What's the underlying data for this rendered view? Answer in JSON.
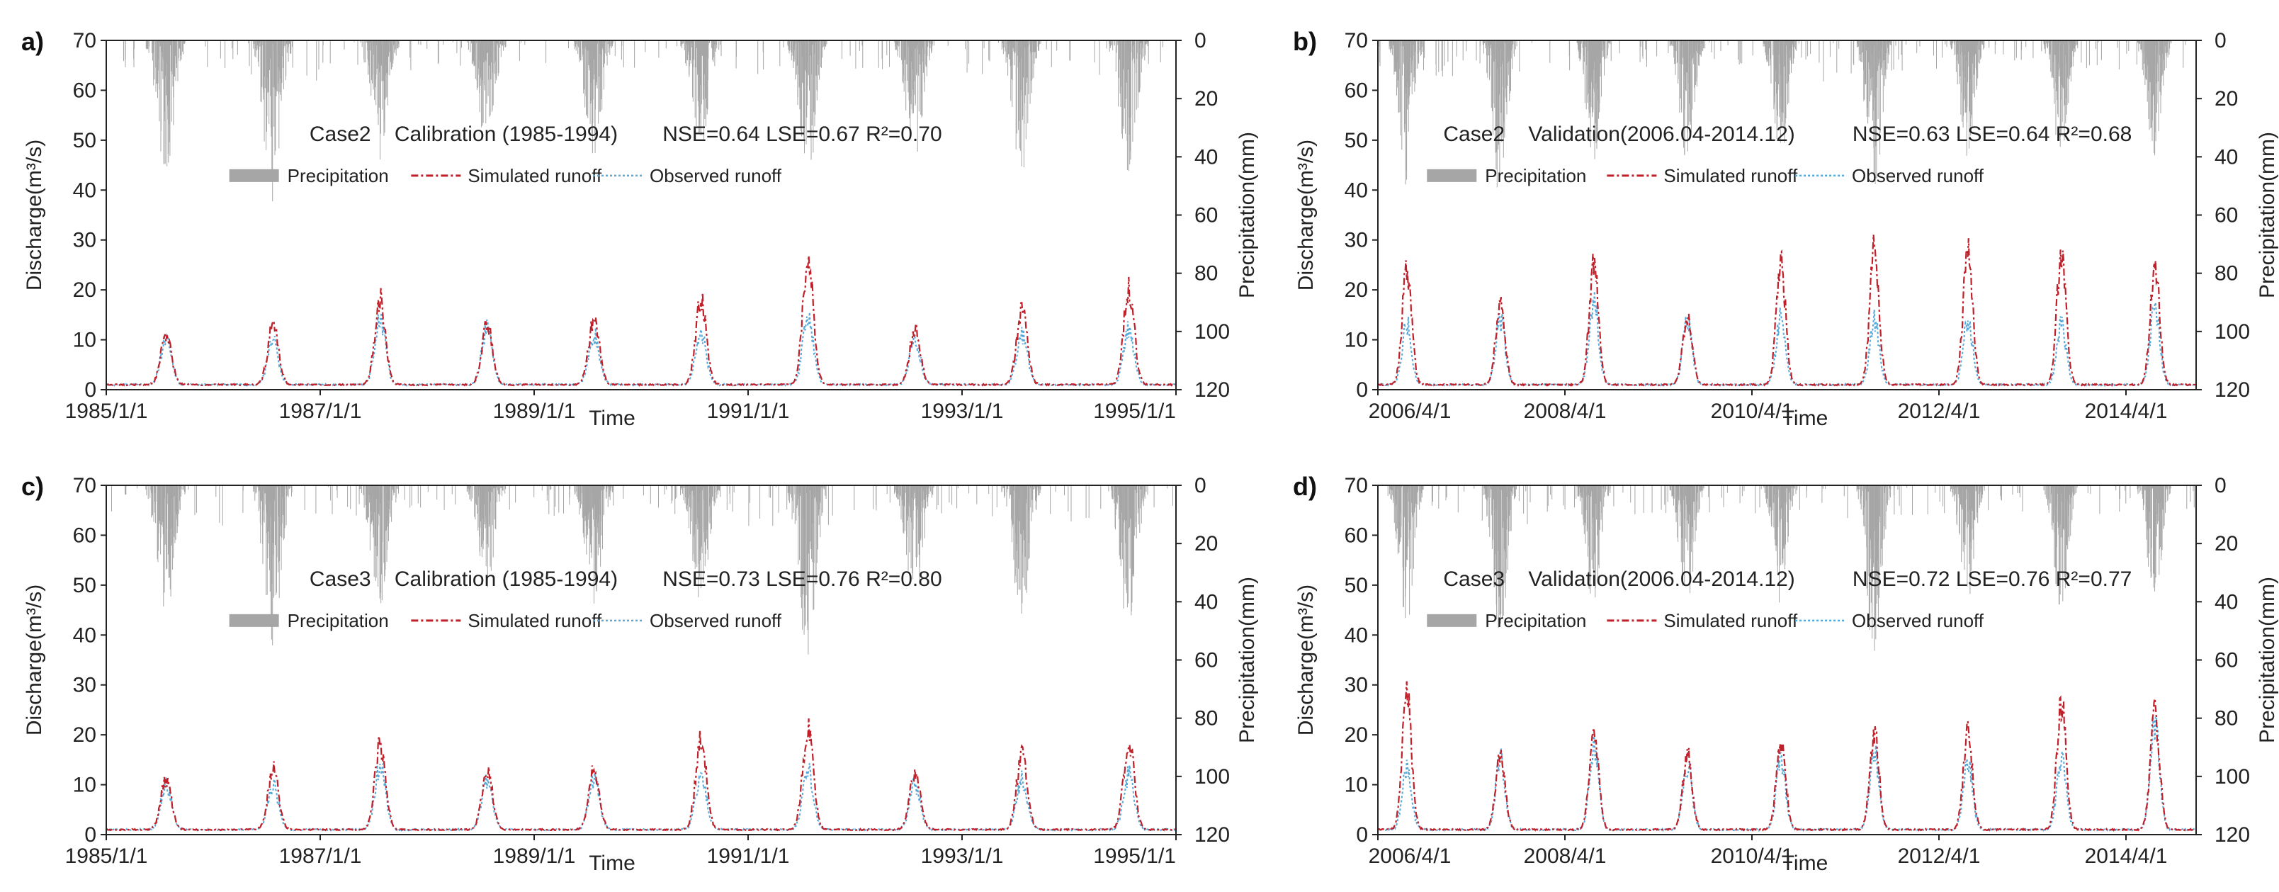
{
  "figure": {
    "xlabel": "Time",
    "ylabel_left": "Discharge(m³/s)",
    "ylabel_right": "Precipitation(mm)"
  },
  "chart_data": [
    {
      "panel": "a)",
      "type": "line",
      "case": "Case2",
      "period": "Calibration (1985-1994)",
      "stats": "NSE=0.64   LSE=0.67   R²=0.70",
      "legend": [
        "Precipitation",
        "Simulated runoff",
        "Observed runoff"
      ],
      "xlabel": "Time",
      "ylabel": "Discharge(m³/s)",
      "y2label": "Precipitation(mm)",
      "ylim": [
        0,
        70
      ],
      "y2lim": [
        120,
        0
      ],
      "yticks": [
        0,
        10,
        20,
        30,
        40,
        50,
        60,
        70
      ],
      "y2ticks": [
        0,
        20,
        40,
        60,
        80,
        100,
        120
      ],
      "xticks": [
        "1985/1/1",
        "1987/1/1",
        "1989/1/1",
        "1991/1/1",
        "1993/1/1",
        "1995/1/1"
      ],
      "start_year": 1985,
      "n_years": 10,
      "sim_peaks": [
        11,
        13,
        18,
        13,
        14,
        18,
        26,
        12,
        16,
        20
      ],
      "obs_peaks": [
        10,
        10,
        14,
        12,
        11,
        11,
        14,
        10,
        11,
        12
      ],
      "precip_max": [
        47,
        56,
        42,
        36,
        42,
        40,
        50,
        42,
        47,
        50
      ]
    },
    {
      "panel": "b)",
      "type": "line",
      "case": "Case2",
      "period": "Validation(2006.04-2014.12)",
      "stats": "NSE=0.63   LSE=0.64   R²=0.68",
      "legend": [
        "Precipitation",
        "Simulated runoff",
        "Observed runoff"
      ],
      "xlabel": "Time",
      "ylabel": "Discharge(m³/s)",
      "y2label": "Precipitation(mm)",
      "ylim": [
        0,
        70
      ],
      "y2lim": [
        120,
        0
      ],
      "yticks": [
        0,
        10,
        20,
        30,
        40,
        50,
        60,
        70
      ],
      "y2ticks": [
        0,
        20,
        40,
        60,
        80,
        100,
        120
      ],
      "xticks": [
        "2006/4/1",
        "2008/4/1",
        "2010/4/1",
        "2012/4/1",
        "2014/4/1"
      ],
      "start_year": 2006.25,
      "n_years": 8.75,
      "sim_peaks": [
        24,
        17,
        25,
        15,
        25,
        28,
        28,
        28,
        25
      ],
      "obs_peaks": [
        13,
        14,
        18,
        14,
        15,
        14,
        14,
        13,
        17
      ],
      "precip_max": [
        50,
        55,
        42,
        42,
        42,
        58,
        40,
        45,
        40
      ]
    },
    {
      "panel": "c)",
      "type": "line",
      "case": "Case3",
      "period": "Calibration (1985-1994)",
      "stats": "NSE=0.73   LSE=0.76   R²=0.80",
      "legend": [
        "Precipitation",
        "Simulated runoff",
        "Observed runoff"
      ],
      "xlabel": "Time",
      "ylabel": "Discharge(m³/s)",
      "y2label": "Precipitation(mm)",
      "ylim": [
        0,
        70
      ],
      "y2lim": [
        120,
        0
      ],
      "yticks": [
        0,
        10,
        20,
        30,
        40,
        50,
        60,
        70
      ],
      "y2ticks": [
        0,
        20,
        40,
        60,
        80,
        100,
        120
      ],
      "xticks": [
        "1985/1/1",
        "1987/1/1",
        "1989/1/1",
        "1991/1/1",
        "1993/1/1",
        "1995/1/1"
      ],
      "start_year": 1985,
      "n_years": 10,
      "sim_peaks": [
        11,
        13,
        18,
        13,
        13,
        19,
        21,
        12,
        16,
        19
      ],
      "obs_peaks": [
        10,
        10,
        14,
        11,
        11,
        12,
        13,
        10,
        11,
        12
      ],
      "precip_max": [
        47,
        56,
        42,
        36,
        42,
        40,
        62,
        42,
        47,
        52
      ]
    },
    {
      "panel": "d)",
      "type": "line",
      "case": "Case3",
      "period": "Validation(2006.04-2014.12)",
      "stats": "NSE=0.72   LSE=0.76   R²=0.77",
      "legend": [
        "Precipitation",
        "Simulated runoff",
        "Observed runoff"
      ],
      "xlabel": "Time",
      "ylabel": "Discharge(m³/s)",
      "y2label": "Precipitation(mm)",
      "ylim": [
        0,
        70
      ],
      "y2lim": [
        120,
        0
      ],
      "yticks": [
        0,
        10,
        20,
        30,
        40,
        50,
        60,
        70
      ],
      "y2ticks": [
        0,
        20,
        40,
        60,
        80,
        100,
        120
      ],
      "xticks": [
        "2006/4/1",
        "2008/4/1",
        "2010/4/1",
        "2012/4/1",
        "2014/4/1"
      ],
      "start_year": 2006.25,
      "n_years": 8.75,
      "sim_peaks": [
        28,
        16,
        20,
        16,
        19,
        20,
        20,
        26,
        24
      ],
      "obs_peaks": [
        13,
        15,
        18,
        14,
        15,
        16,
        15,
        15,
        22
      ],
      "precip_max": [
        50,
        55,
        42,
        42,
        42,
        58,
        40,
        45,
        40
      ]
    }
  ],
  "colors": {
    "precip": "#a6a6a6",
    "sim": "#c0202a",
    "obs": "#55a8d8",
    "axis": "#222222"
  }
}
